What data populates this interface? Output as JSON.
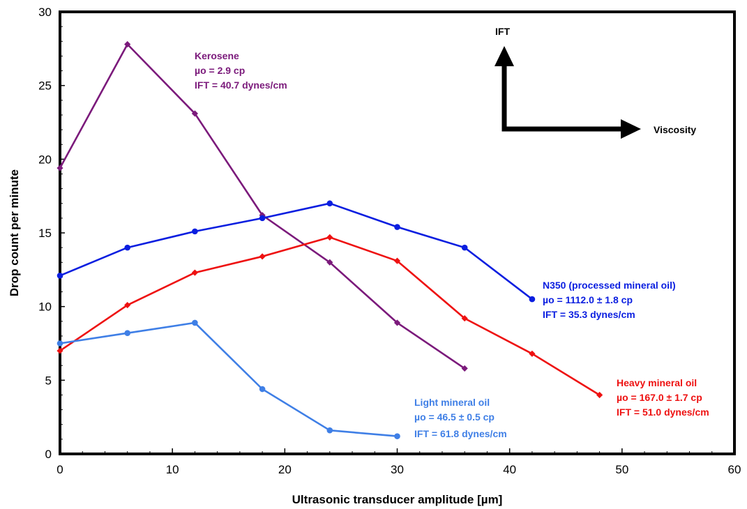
{
  "chart_data": {
    "type": "line",
    "xlabel": "Ultrasonic transducer amplitude [µm]",
    "ylabel": "Drop count per minute",
    "xlim": [
      0,
      60
    ],
    "ylim": [
      0,
      30
    ],
    "xticks": [
      0,
      10,
      20,
      30,
      40,
      50,
      60
    ],
    "yticks": [
      0,
      5,
      10,
      15,
      20,
      25,
      30
    ],
    "grid": false,
    "series": [
      {
        "name": "Kerosene",
        "color": "#7b1a7b",
        "marker": "diamond",
        "x": [
          0,
          6,
          12,
          18,
          24,
          30,
          36
        ],
        "y": [
          19.4,
          27.8,
          23.1,
          16.2,
          13.0,
          8.9,
          5.8
        ]
      },
      {
        "name": "N350 (processed mineral oil)",
        "color": "#0a1ee0",
        "marker": "circle",
        "x": [
          0,
          6,
          12,
          18,
          24,
          30,
          36,
          42
        ],
        "y": [
          12.1,
          14.0,
          15.1,
          16.0,
          17.0,
          15.4,
          14.0,
          10.5
        ]
      },
      {
        "name": "Heavy mineral oil",
        "color": "#ee1111",
        "marker": "diamond",
        "x": [
          0,
          6,
          12,
          18,
          24,
          30,
          36,
          42,
          48
        ],
        "y": [
          7.0,
          10.1,
          12.3,
          13.4,
          14.7,
          13.1,
          9.2,
          6.8,
          4.0
        ]
      },
      {
        "name": "Light mineral oil",
        "color": "#3f7fe6",
        "marker": "circle",
        "x": [
          0,
          6,
          12,
          18,
          24,
          30
        ],
        "y": [
          7.5,
          8.2,
          8.9,
          4.4,
          1.6,
          1.2
        ]
      }
    ],
    "annotations": [
      {
        "series": "Kerosene",
        "lines": [
          "Kerosene",
          "µo = 2.9 cp",
          "IFT = 40.7  dynes/cm"
        ]
      },
      {
        "series": "N350 (processed mineral oil)",
        "lines": [
          "N350 (processed mineral oil)",
          "µo = 1112.0 ± 1.8 cp",
          "IFT = 35.3  dynes/cm"
        ]
      },
      {
        "series": "Heavy mineral oil",
        "lines": [
          "Heavy mineral oil",
          "µo = 167.0 ± 1.7 cp",
          "IFT = 51.0  dynes/cm"
        ]
      },
      {
        "series": "Light mineral oil",
        "lines": [
          "Light mineral oil",
          "µo = 46.5 ± 0.5 cp",
          "IFT = 61.8 dynes/cm"
        ]
      }
    ],
    "inset_arrows": {
      "vertical_label": "IFT",
      "horizontal_label": "Viscosity"
    }
  }
}
